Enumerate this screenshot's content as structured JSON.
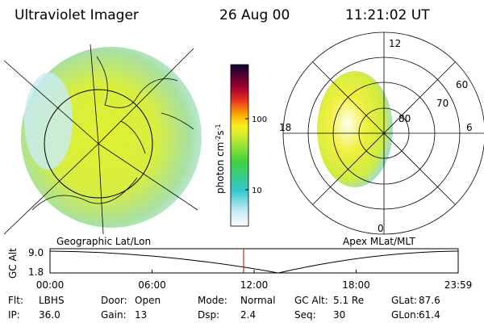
{
  "header": {
    "title": "Ultraviolet Imager",
    "date": "26 Aug 00",
    "time": "11:21:02 UT"
  },
  "colorbar": {
    "label": {
      "base": "photon cm",
      "exp1": "-2",
      "unit": "s",
      "exp2": "-1"
    },
    "ticks": [
      "100",
      "10"
    ]
  },
  "left_panel": {
    "label": "Geographic Lat/Lon"
  },
  "right_panel": {
    "label": "Apex MLat/MLT",
    "mlt_labels": [
      "12",
      "18",
      "6",
      "0"
    ],
    "mlat_labels": [
      "60",
      "70",
      "80"
    ]
  },
  "altitude_plot": {
    "ylabel": "GC Alt",
    "yticks": [
      "9.0",
      "1.8"
    ],
    "xticks": [
      "00:00",
      "06:00",
      "12:00",
      "18:00",
      "23:59"
    ]
  },
  "info": [
    [
      {
        "label": "Flt:",
        "value": "LBHS"
      },
      {
        "label": "Door:",
        "value": "Open"
      },
      {
        "label": "Mode:",
        "value": "Normal"
      },
      {
        "label": "GC Alt:",
        "value": "5.1 Re"
      },
      {
        "label": "GLat:",
        "value": "87.6"
      }
    ],
    [
      {
        "label": "IP:",
        "value": "36.0"
      },
      {
        "label": "Gain:",
        "value": "13"
      },
      {
        "label": "Dsp:",
        "value": "2.4"
      },
      {
        "label": "Seq:",
        "value": "30"
      },
      {
        "label": "GLon:",
        "value": "61.4"
      }
    ]
  ]
}
